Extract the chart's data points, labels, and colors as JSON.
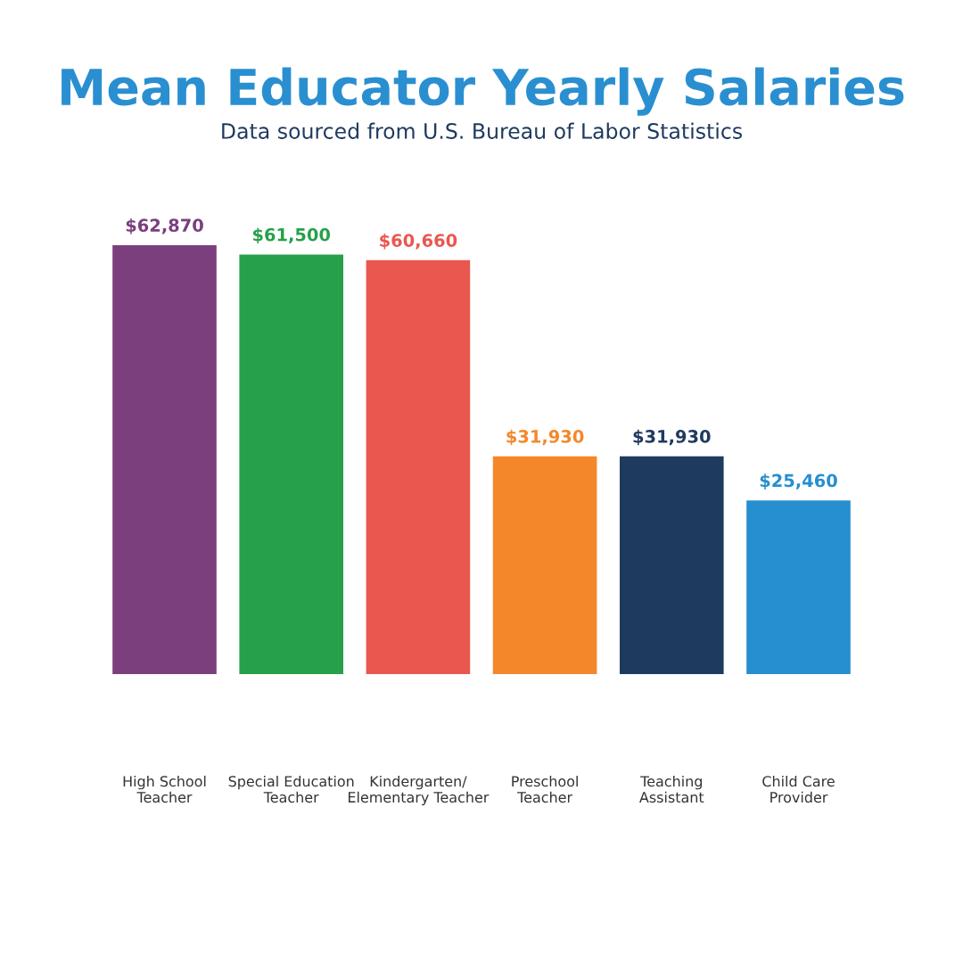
{
  "chart_data": {
    "type": "bar",
    "title": "Mean Educator Yearly Salaries",
    "subtitle": "Data sourced from U.S. Bureau of Labor Statistics",
    "categories": [
      "High School\nTeacher",
      "Special Education\nTeacher",
      "Kindergarten/\nElementary Teacher",
      "Preschool\nTeacher",
      "Teaching\nAssistant",
      "Child Care\nProvider"
    ],
    "values": [
      62870,
      61500,
      60660,
      31930,
      31930,
      25460
    ],
    "colors": [
      "#7b3f7e",
      "#27a04b",
      "#e9574f",
      "#f5872b",
      "#1f3a5f",
      "#268fd0"
    ],
    "value_labels": [
      "$62,870",
      "$61,500",
      "$60,660",
      "$31,930",
      "$31,930",
      "$25,460"
    ],
    "grid": false,
    "legend": false
  }
}
